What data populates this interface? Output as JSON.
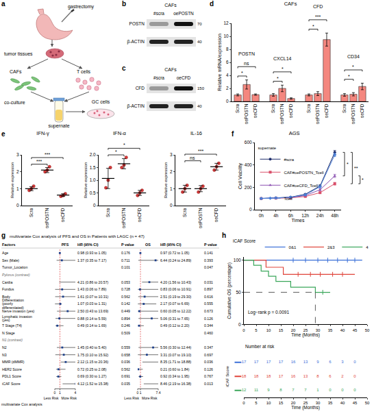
{
  "panel_labels": [
    "a",
    "b",
    "c",
    "d",
    "e",
    "f",
    "g",
    "h"
  ],
  "diagram": {
    "surgery": "gastrectomy",
    "tissue": "tumor tissues",
    "fibroblasts": "CAFs",
    "lymphocytes": "T cells",
    "coculture": "co-culture",
    "medium": "supernate",
    "cancer_cells": "GC cells"
  },
  "blots": [
    {
      "title": "CAFs",
      "lanes": [
        "#scra",
        "oePOSTN"
      ],
      "rows": [
        {
          "label": "POSTN",
          "marker": 70
        },
        {
          "label": "β-ACTIN",
          "marker": 40
        }
      ]
    },
    {
      "title": "CAFs",
      "lanes": [
        "#scra",
        "oeCFD"
      ],
      "rows": [
        {
          "label": "CFD",
          "marker": 150
        },
        {
          "label": "β-ACTIN",
          "marker": 40
        }
      ]
    }
  ],
  "chart_data": [
    {
      "type": "bar",
      "title": "CAFs",
      "y_label": "Relative mRNA/expression",
      "categories": [
        "Scra",
        "oePOSTN",
        "oeCFD"
      ],
      "color": "#f4877f",
      "ylim": [
        0,
        12
      ],
      "yticks": [
        0,
        2,
        4,
        6,
        8,
        10,
        12
      ],
      "groups": [
        {
          "name": "POSTN",
          "values": [
            1.0,
            2.6,
            1.05
          ],
          "errors": [
            0.15,
            0.7,
            0.1
          ],
          "significance": [
            {
              "pair": [
                0,
                1
              ],
              "label": "*"
            },
            {
              "pair": [
                0,
                2
              ],
              "label": "ns"
            }
          ]
        },
        {
          "name": "CXCL14",
          "values": [
            1.0,
            2.0,
            0.45
          ],
          "errors": [
            0.2,
            0.5,
            0.1
          ],
          "significance": [
            {
              "pair": [
                0,
                1
              ],
              "label": "*"
            },
            {
              "pair": [
                0,
                2
              ],
              "label": "*"
            }
          ]
        },
        {
          "name": "CFD",
          "values": [
            1.0,
            1.2,
            9.5
          ],
          "errors": [
            0.15,
            0.3,
            1.0
          ],
          "significance": [
            {
              "pair": [
                0,
                1
              ],
              "label": "*"
            },
            {
              "pair": [
                0,
                2
              ],
              "label": "***"
            }
          ]
        },
        {
          "name": "CD34",
          "values": [
            1.0,
            1.1,
            2.3
          ],
          "errors": [
            0.2,
            0.25,
            0.5
          ],
          "significance": [
            {
              "pair": [
                0,
                1
              ],
              "label": "*"
            },
            {
              "pair": [
                0,
                2
              ],
              "label": "*"
            }
          ]
        }
      ]
    },
    {
      "type": "scatter",
      "title": "IFN-γ",
      "y_label": "Relative expression",
      "categories": [
        "Scra",
        "oePOSTN",
        "oeCFD"
      ],
      "color": "#d93a3a",
      "points": [
        [
          0.9,
          1.0,
          1.15
        ],
        [
          2.0,
          2.1,
          2.3
        ],
        [
          0.55,
          0.6,
          0.7
        ]
      ],
      "values": [
        1.0,
        2.1,
        0.62
      ],
      "errors": [
        0.12,
        0.15,
        0.08
      ],
      "ylim": [
        0,
        3
      ],
      "yticks": [
        0,
        1,
        2,
        3
      ],
      "significance": [
        {
          "pair": [
            0,
            1
          ],
          "label": "***"
        },
        {
          "pair": [
            0,
            2
          ],
          "label": "***"
        }
      ]
    },
    {
      "type": "scatter",
      "title": "IFN-α",
      "y_label": "Relative expression",
      "categories": [
        "Scra",
        "oePOSTN",
        "oeCFD"
      ],
      "color": "#d93a3a",
      "points": [
        [
          0.7,
          1.0,
          1.5
        ],
        [
          1.5,
          1.6,
          1.9
        ],
        [
          0.4,
          0.5,
          0.6
        ]
      ],
      "values": [
        1.07,
        1.65,
        0.5
      ],
      "errors": [
        0.4,
        0.2,
        0.1
      ],
      "ylim": [
        0,
        2
      ],
      "yticks": [
        0,
        0.5,
        {
          "value": 1,
          "label": "1.0"
        },
        1.5,
        {
          "value": 2,
          "label": "2.0"
        }
      ],
      "significance": [
        {
          "pair": [
            0,
            1
          ],
          "label": "*"
        },
        {
          "pair": [
            0,
            2
          ],
          "label": "*"
        }
      ]
    },
    {
      "type": "scatter",
      "title": "IL-16",
      "y_label": "Relative expression",
      "categories": [
        "Scra",
        "oePOSTN",
        "oeCFD"
      ],
      "color": "#d93a3a",
      "points": [
        [
          0.8,
          1.0,
          1.2
        ],
        [
          0.8,
          1.0,
          1.15
        ],
        [
          2.1,
          2.3,
          2.5
        ]
      ],
      "values": [
        1.0,
        1.0,
        2.3
      ],
      "errors": [
        0.2,
        0.18,
        0.2
      ],
      "ylim": [
        0,
        3
      ],
      "yticks": [
        0,
        1,
        2,
        3
      ],
      "significance": [
        {
          "pair": [
            0,
            1
          ],
          "label": "ns"
        },
        {
          "pair": [
            0,
            2
          ],
          "label": "***"
        }
      ]
    },
    {
      "type": "line",
      "title": "AGS",
      "x_label": "Times",
      "y_label": "Cell Viability",
      "legend_title": "supernate",
      "legend": "top-left",
      "categories": [
        "0h",
        "4h",
        "6h",
        "12h",
        "24h",
        "48h"
      ],
      "ylim": [
        0,
        600
      ],
      "yticks": [
        0,
        200,
        400,
        600
      ],
      "series": [
        {
          "name": "#scra",
          "color": "#1e2d6b",
          "marker": "circle",
          "values": [
            100,
            106,
            112,
            138,
            212,
            512
          ],
          "errors": [
            2,
            3,
            4,
            6,
            10,
            18
          ]
        },
        {
          "name": "CAF#oePOSTN_Tcell",
          "color": "#d94f6a",
          "marker": "square",
          "values": [
            100,
            103,
            106,
            118,
            152,
            232
          ],
          "errors": [
            2,
            3,
            3,
            5,
            8,
            12
          ]
        },
        {
          "name": "CAF#oeCFD_Tcell",
          "color": "#8a4fb0",
          "marker": "triangle-up",
          "values": [
            100,
            104,
            109,
            127,
            178,
            302
          ],
          "errors": [
            2,
            3,
            4,
            5,
            9,
            14
          ]
        },
        {
          "name": "Tcell",
          "color": "#4b7fd6",
          "marker": "diamond",
          "values": [
            100,
            105,
            111,
            133,
            205,
            490
          ],
          "errors": [
            2,
            3,
            4,
            6,
            10,
            16
          ]
        }
      ],
      "significance": [
        {
          "pair": [
            0,
            2
          ],
          "label": "*"
        },
        {
          "pair": [
            0,
            1
          ],
          "label": "**"
        },
        {
          "pair": [
            2,
            1
          ],
          "label": "*"
        }
      ]
    },
    {
      "type": "survival",
      "x_label": "Time (Months)",
      "y_label": "Cumulative OS (percentage)",
      "legend_title": "iCAF Score",
      "legend": "top",
      "xlim": [
        0,
        50
      ],
      "xticks": [
        0,
        5,
        10,
        15,
        20,
        25,
        30,
        35,
        40,
        45,
        50
      ],
      "ylim": [
        0,
        105
      ],
      "yticks": [
        0,
        50,
        100
      ],
      "log_rank": "Log−rank p = 0.0091",
      "median_line": {
        "x": 29,
        "y": 50
      },
      "series": [
        {
          "name": "0&1",
          "color": "#3b6fd8",
          "x": [
            0,
            48
          ],
          "values": [
            100,
            100
          ],
          "censored": {
            "x": [
              20,
              25,
              30,
              34,
              38,
              42,
              45
            ],
            "y": [
              100,
              100,
              100,
              100,
              100,
              100,
              100
            ]
          }
        },
        {
          "name": "2&3",
          "color": "#e0443a",
          "x": [
            0,
            9,
            16,
            45
          ],
          "values": [
            100,
            89,
            78,
            78
          ],
          "censored": {
            "x": [
              22,
              27,
              31,
              36,
              40
            ],
            "y": [
              78,
              78,
              78,
              78,
              78
            ]
          }
        },
        {
          "name": "4",
          "color": "#3aa65a",
          "x": [
            0,
            4,
            7,
            10,
            13,
            19,
            29,
            35
          ],
          "values": [
            100,
            92,
            83,
            75,
            67,
            58,
            50,
            50
          ],
          "censored": {
            "x": [
              32
            ],
            "y": [
              50
            ]
          }
        }
      ],
      "risk_table": {
        "title": "Number at risk",
        "row_label": "iCAF Score",
        "x_label": "Time (Months)",
        "x": [
          0,
          5,
          10,
          15,
          20,
          25,
          30,
          35,
          40,
          45
        ],
        "rows": [
          [
            17,
            17,
            17,
            17,
            16,
            13,
            9,
            6,
            3,
            0
          ],
          [
            18,
            18,
            18,
            17,
            16,
            13,
            8,
            6,
            2,
            0
          ],
          [
            12,
            11,
            9,
            8,
            7,
            7,
            1,
            0,
            0,
            0
          ]
        ]
      }
    }
  ],
  "forest": {
    "title": "multivariate Cox analysis of PFS and OS in Patients with LAGC (n = 47)",
    "columns": [
      "Factors",
      "PFS",
      "HR (95% CI)",
      "P value",
      "OS",
      "HR (95% CI)",
      "P value"
    ],
    "axes": {
      "pfs": {
        "xlim": [
          0,
          4
        ],
        "xticks": [
          0,
          1,
          4
        ],
        "reference": 1
      },
      "os": {
        "xlim": [
          0,
          7.4
        ],
        "xticks": [
          0,
          1,
          7.4
        ],
        "reference": 1
      }
    },
    "less": "Less Risk",
    "more": "More Risk",
    "footer": "multivariate Cox analysis",
    "rows": [
      {
        "factor": "Age",
        "pfs": {
          "label": "0.98 (0.93 to 1.05)",
          "hr": 0.98,
          "lo": 0.93,
          "hi": 1.05,
          "p": "0.176"
        },
        "os": {
          "label": "0.97 (0.72 to 1.05)",
          "hr": 0.97,
          "lo": 0.72,
          "hi": 1.05,
          "p": "0.141"
        }
      },
      {
        "factor": "Sex (Male)",
        "pfs": {
          "label": "1.37 (0.35 to 7.17)",
          "hr": 1.37,
          "lo": 0.35,
          "hi": 7.17,
          "p": "0.711"
        },
        "os": {
          "label": "6.44 (0.24 to 24.89)",
          "hr": 6.44,
          "lo": 0.24,
          "hi": 24.89,
          "p": "0.393"
        }
      },
      {
        "factor": "Tumor_Location",
        "pfs": {
          "p": "0.101"
        },
        "os": {
          "p": "0.047"
        }
      },
      {
        "factor": "Pylorus (contrast)",
        "contrast": true
      },
      {
        "factor": "Cardia",
        "pfs": {
          "label": "4.21 (0.86 to 20.57)",
          "hr": 4.21,
          "lo": 0.86,
          "hi": 20.57,
          "p": "0.053"
        },
        "os": {
          "label": "4.20 (1.56 to 10.43)",
          "hr": 4.2,
          "lo": 1.56,
          "hi": 10.43,
          "p": "0.031"
        }
      },
      {
        "factor": "Fundus",
        "pfs": {
          "label": "1.43 (0.06 to 7.89)",
          "hr": 1.43,
          "lo": 0.06,
          "hi": 7.89,
          "p": "0.728"
        },
        "os": {
          "label": "0.83 (0.06 to 10.91)",
          "hr": 0.83,
          "lo": 0.06,
          "hi": 10.91,
          "p": "0.897"
        }
      },
      {
        "factor": "Body",
        "pfs": {
          "label": "1.61 (0.07 to 10.31)",
          "hr": 1.61,
          "lo": 0.07,
          "hi": 10.31,
          "p": "0.562"
        },
        "os": {
          "label": "2.51 (0.19 to 29.30)",
          "hr": 2.51,
          "lo": 0.19,
          "hi": 29.3,
          "p": "0.616"
        }
      },
      {
        "factor": "Differentiation (poorly differentiated)",
        "pfs": {
          "label": "1.07 (0.03 to 1.31)",
          "hr": 1.07,
          "lo": 0.03,
          "hi": 1.31,
          "p": "0.142"
        },
        "os": {
          "label": "2.17 (0.07 to 6.69)",
          "hr": 2.17,
          "lo": 0.07,
          "hi": 6.69,
          "p": "0.555"
        }
      },
      {
        "factor": "Nerve invasion (yes)",
        "pfs": {
          "label": "2.50 (0.43 to 13.69)",
          "hr": 2.5,
          "lo": 0.43,
          "hi": 13.69,
          "p": "0.449"
        },
        "os": {
          "label": "0.60 (0.05 to 12.22)",
          "hr": 0.6,
          "lo": 0.05,
          "hi": 12.22,
          "p": "0.673"
        }
      },
      {
        "factor": "Lymphatic invasion (yes)",
        "pfs": {
          "label": "0.88 (0.14 to 5.59)",
          "hr": 0.88,
          "lo": 0.14,
          "hi": 5.59,
          "p": "0.894"
        },
        "os": {
          "label": "5.06 (0.31 to 7.65)",
          "hr": 5.06,
          "lo": 0.31,
          "hi": 7.65,
          "p": "0.126"
        }
      },
      {
        "factor": "T Stage (T4)",
        "pfs": {
          "label": "0.49 (0.14 to 1.69)",
          "hr": 0.49,
          "lo": 0.14,
          "hi": 1.69,
          "p": "0.246"
        },
        "os": {
          "label": "0.49 (0.12 to 2.20)",
          "hr": 0.49,
          "lo": 0.12,
          "hi": 2.2,
          "p": "0.344"
        }
      },
      {
        "factor": "N Stage",
        "pfs": {
          "p": "0.509"
        },
        "os": {
          "p": "0.460"
        }
      },
      {
        "factor": "N1 (contrast)",
        "contrast": true
      },
      {
        "factor": "N2",
        "pfs": {
          "label": "1.45 (0.40 to 5.40)",
          "hr": 1.45,
          "lo": 0.4,
          "hi": 5.4,
          "p": "0.559"
        },
        "os": {
          "label": "5.56 (0.30 to 12.44)",
          "hr": 5.56,
          "lo": 0.3,
          "hi": 12.44,
          "p": "0.347"
        }
      },
      {
        "factor": "N3",
        "pfs": {
          "label": "1.75 (0.10 to 15.92)",
          "hr": 1.75,
          "lo": 0.1,
          "hi": 15.92,
          "p": "0.658"
        },
        "os": {
          "label": "3.31 (0.07 to 19.10)",
          "hr": 3.31,
          "lo": 0.07,
          "hi": 19.1,
          "p": "0.697"
        }
      },
      {
        "factor": "MMR (dMMR)",
        "pfs": {
          "label": "2.12 (1.15 to 20.36)",
          "hr": 2.12,
          "lo": 1.15,
          "hi": 20.36,
          "p": "0.036"
        },
        "os": {
          "label": "8.35 (1.71 to 18.88)",
          "hr": 8.35,
          "lo": 1.71,
          "hi": 18.88,
          "p": "0.036"
        }
      },
      {
        "factor": "HER2 Score",
        "pfs": {
          "label": "0.72 (0.25 to 2.08)",
          "hr": 0.72,
          "lo": 0.25,
          "hi": 2.08,
          "p": "0.562"
        },
        "os": {
          "label": "0.21 (0.60 to 1.84)",
          "hr": 0.21,
          "lo": 0.6,
          "hi": 1.84,
          "p": "0.126"
        }
      },
      {
        "factor": "PDL1 Score",
        "pfs": {
          "label": "0.69 (0.30 to 1.27)",
          "hr": 0.69,
          "lo": 0.3,
          "hi": 1.27,
          "p": "0.691"
        },
        "os": {
          "label": "0.92 (0.34 to 1.95)",
          "hr": 0.92,
          "lo": 0.34,
          "hi": 1.95,
          "p": "0.767"
        }
      },
      {
        "factor": "iCAF Score",
        "pfs": {
          "label": "4.12 (1.52 to 15.38)",
          "hr": 4.12,
          "lo": 1.52,
          "hi": 15.38,
          "p": "0.035"
        },
        "os": {
          "label": "8.46 (2.19 to 16.38)",
          "hr": 8.46,
          "lo": 2.19,
          "hi": 16.38,
          "p": "0.013"
        }
      }
    ]
  }
}
